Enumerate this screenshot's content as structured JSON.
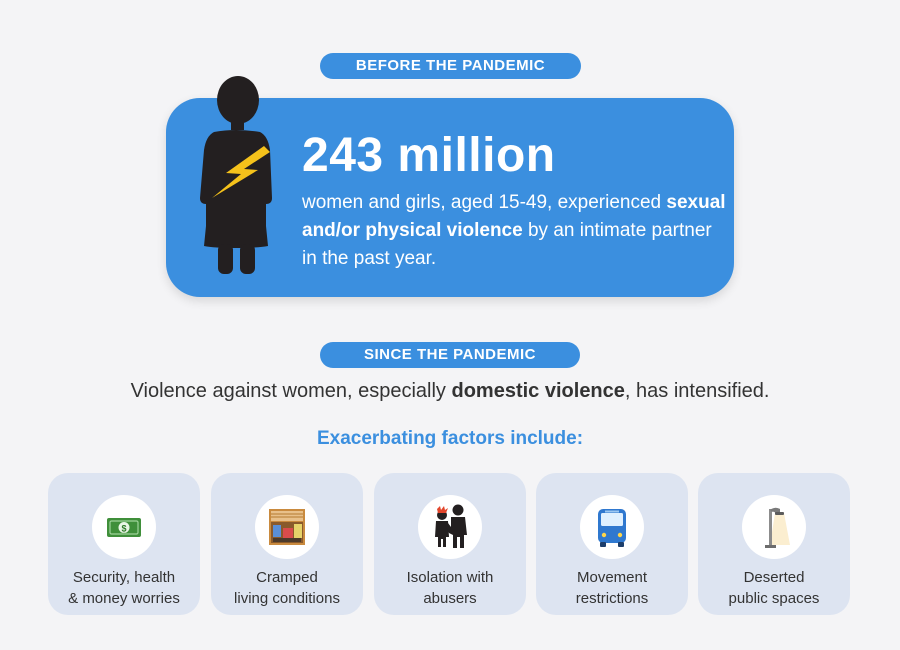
{
  "before": {
    "label": "BEFORE THE PANDEMIC",
    "stat": "243 million",
    "desc_pre": "women and girls, aged 15-49, experienced",
    "desc_bold": "sexual and/or physical violence",
    "desc_post": " by an intimate partner in the past year."
  },
  "since": {
    "label": "SINCE THE PANDEMIC",
    "text_pre": "Violence against women, especially ",
    "text_bold": "domestic violence",
    "text_post": ", has intensified."
  },
  "factors": {
    "heading": "Exacerbating factors include:",
    "items": [
      {
        "line1": "Security, health",
        "line2": "& money worries",
        "icon": "money-icon"
      },
      {
        "line1": "Cramped",
        "line2": "living conditions",
        "icon": "cramped-room-icon"
      },
      {
        "line1": "Isolation with",
        "line2": "abusers",
        "icon": "abuser-figures-icon"
      },
      {
        "line1": "Movement",
        "line2": "restrictions",
        "icon": "bus-icon"
      },
      {
        "line1": "Deserted",
        "line2": "public spaces",
        "icon": "street-lamp-icon"
      }
    ]
  },
  "colors": {
    "accent": "#3b8fdf",
    "background": "#f4f4f6",
    "card": "#dde4f1",
    "figure": "#231f20",
    "lightning": "#f5c21b"
  }
}
